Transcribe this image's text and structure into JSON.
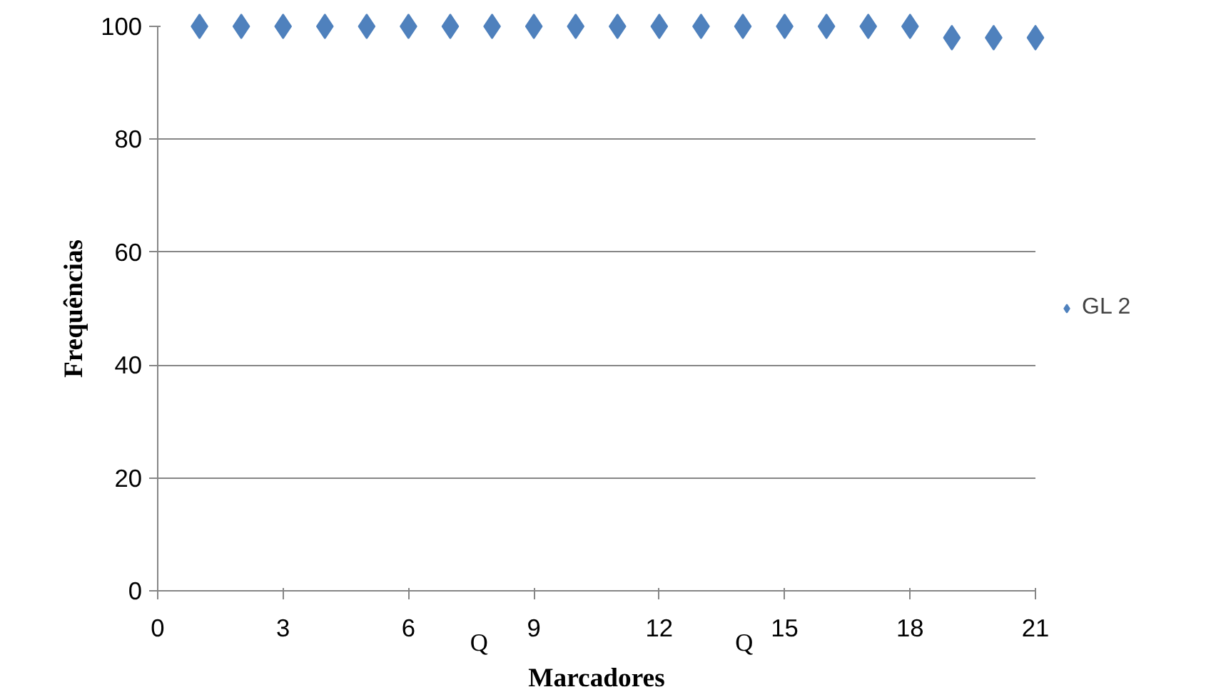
{
  "chart_data": {
    "type": "scatter",
    "xlabel": "Marcadores",
    "ylabel": "Frequências",
    "x": [
      1,
      2,
      3,
      4,
      5,
      6,
      7,
      8,
      9,
      10,
      11,
      12,
      13,
      14,
      15,
      16,
      17,
      18,
      19,
      20,
      21
    ],
    "series": [
      {
        "name": "GL 2",
        "color": "#4f81bd",
        "values": [
          100,
          100,
          100,
          100,
          100,
          100,
          100,
          100,
          100,
          100,
          100,
          100,
          100,
          100,
          100,
          100,
          100,
          100,
          98,
          98,
          98
        ]
      }
    ],
    "xlim": [
      0,
      21
    ],
    "xticks": [
      0,
      3,
      6,
      9,
      12,
      15,
      18,
      21
    ],
    "ylim": [
      0,
      100
    ],
    "yticks": [
      0,
      20,
      40,
      60,
      80,
      100
    ],
    "grid": "y",
    "legend": "right",
    "marker": "diamond",
    "annotations": [
      "Q",
      "Q"
    ]
  }
}
